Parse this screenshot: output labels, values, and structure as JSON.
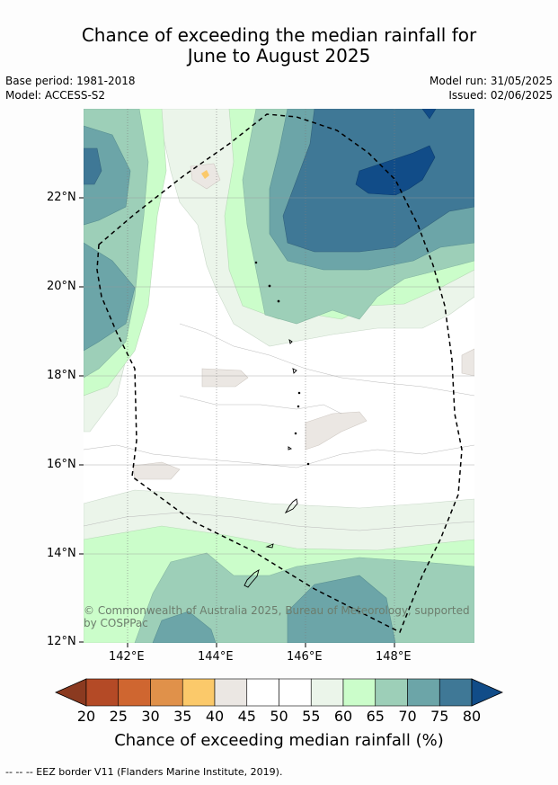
{
  "title_line1": "Chance of exceeding the median rainfall for",
  "title_line2": "June to August 2025",
  "meta": {
    "base_period": "Base period: 1981-2018",
    "model": "Model: ACCESS-S2",
    "model_run": "Model run: 31/05/2025",
    "issued": "Issued: 02/06/2025"
  },
  "axes": {
    "lat_labels": [
      "22°N",
      "20°N",
      "18°N",
      "16°N",
      "14°N",
      "12°N"
    ],
    "lon_labels": [
      "142°E",
      "144°E",
      "146°E",
      "148°E"
    ]
  },
  "copyright": "© Commonwealth of Australia 2025, Bureau of Meteorology, supported by COSPPac",
  "colorbar": {
    "ticks": [
      "20",
      "25",
      "30",
      "35",
      "40",
      "45",
      "50",
      "55",
      "60",
      "65",
      "70",
      "75",
      "80"
    ],
    "colors": [
      "#8b3a20",
      "#b44a26",
      "#cf6630",
      "#e0914a",
      "#fbc96a",
      "#ebe7e3",
      "#ffffff",
      "#ffffff",
      "#ebf5ea",
      "#cbfdca",
      "#9dcfb8",
      "#6ca5a8",
      "#3f7896",
      "#114c88"
    ],
    "title": "Chance of exceeding median rainfall (%)"
  },
  "footer": "--  --  -- EEZ border V11 (Flanders Marine Institute, 2019)."
}
